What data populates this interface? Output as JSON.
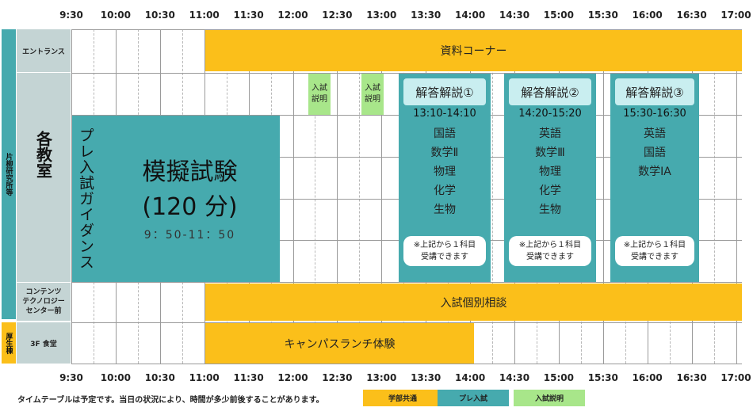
{
  "times": [
    "9:30",
    "10:00",
    "10:30",
    "11:00",
    "11:30",
    "12:00",
    "12:30",
    "13:00",
    "13:30",
    "14:00",
    "14:30",
    "15:00",
    "15:30",
    "16:00",
    "16:30",
    "17:00"
  ],
  "side_labels": {
    "outer_top": "片柳研究所等",
    "outer_bottom": "厚生棟",
    "entrance": "エントランス",
    "classroom": "各教室",
    "contents": [
      "コンテンツ",
      "テクノロジー",
      "センター前"
    ],
    "cafeteria": "3F 食堂"
  },
  "events": {
    "materials": "資料コーナー",
    "admission_info_1": [
      "入試",
      "説明"
    ],
    "admission_info_2": [
      "入試",
      "説明"
    ],
    "pre_guidance": "プレ入試ガイダンス",
    "mock_exam_title": "模擬試験",
    "mock_exam_duration": "(120 分)",
    "mock_exam_time": "9：50-11：50",
    "consultation": "入試個別相談",
    "campus_lunch": "キャンパスランチ体験"
  },
  "answers": [
    {
      "title": "解答解説①",
      "time": "13:10-14:10",
      "subjects": [
        "国語",
        "数学Ⅱ",
        "物理",
        "化学",
        "生物"
      ],
      "note": [
        "※上記から１科目",
        "受講できます"
      ]
    },
    {
      "title": "解答解説②",
      "time": "14:20-15:20",
      "subjects": [
        "英語",
        "数学Ⅲ",
        "物理",
        "化学",
        "生物"
      ],
      "note": [
        "※上記から１科目",
        "受講できます"
      ]
    },
    {
      "title": "解答解説③",
      "time": "15:30-16:30",
      "subjects": [
        "英語",
        "国語",
        "数学ⅠA"
      ],
      "note": [
        "※上記から１科目",
        "受講できます"
      ]
    }
  ],
  "footer": {
    "note": "タイムテーブルは予定です。当日の状況により、時間が多少前後することがあります。",
    "legend": [
      {
        "label": "学部共通",
        "color": "#fbbf1a"
      },
      {
        "label": "プレ入試",
        "color": "#46aaae"
      },
      {
        "label": "入試説明",
        "color": "#a8e68a"
      }
    ]
  }
}
